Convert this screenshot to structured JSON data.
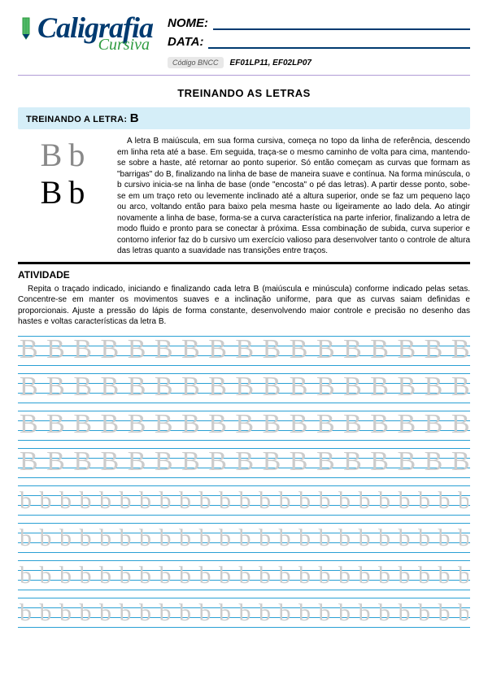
{
  "logo": {
    "main": "Caligrafia",
    "sub": "Cursiva"
  },
  "fields": {
    "name_label": "NOME:",
    "date_label": "DATA:",
    "code_badge": "Código BNCC",
    "code_value": "EF01LP11, EF02LP07"
  },
  "section_title": "TREINANDO AS LETRAS",
  "letter_bar": {
    "prefix": "TREINANDO A LETRA:",
    "letter": "B"
  },
  "samples": {
    "dotted_upper": "B",
    "dotted_lower": "b",
    "solid_upper": "B",
    "solid_lower": "b"
  },
  "intro_text": "A letra B maiúscula, em sua forma cursiva, começa no topo da linha de referência, descendo em linha reta até a base. Em seguida, traça-se o mesmo caminho de volta para cima, mantendo-se sobre a haste, até retornar ao ponto superior. Só então começam as curvas que formam as \"barrigas\" do B, finalizando na linha de base de maneira suave e contínua. Na forma minúscula, o b cursivo inicia-se na linha de base (onde \"encosta\" o pé das letras). A partir desse ponto, sobe-se em um traço reto ou levemente inclinado até a altura superior, onde se faz um pequeno laço ou arco, voltando então para baixo pela mesma haste ou ligeiramente ao lado dela. Ao atingir novamente a linha de base, forma-se a curva característica na parte inferior, finalizando a letra de modo fluido e pronto para se conectar à próxima. Essa combinação de subida, curva superior e contorno inferior faz do b cursivo um exercício valioso para desenvolver tanto o controle de altura das letras quanto a suavidade nas transições entre traços.",
  "activity": {
    "label": "ATIVIDADE",
    "text": "Repita o traçado indicado, iniciando e finalizando cada letra B (maiúscula e minúscula) conforme indicado pelas setas. Concentre-se em manter os movimentos suaves e a inclinação uniforme, para que as curvas saiam definidas e proporcionais. Ajuste a pressão do lápis de forma constante, desenvolvendo maior controle e precisão no desenho das hastes e voltas características da letra B."
  },
  "practice": {
    "upper_rows": 4,
    "lower_rows": 4,
    "upper_trace": "B B B B B B B B B B B B B B B B B B",
    "lower_trace": "b b b b b b b b b b b b b b b b b b b b b b b b b"
  },
  "colors": {
    "brand_blue": "#003a70",
    "brand_green": "#2d9b3f",
    "rule_blue": "#2aa0d4",
    "bar_bg": "#d5eef8",
    "sep": "#b09bd6",
    "trace_gray": "#cccccc"
  }
}
